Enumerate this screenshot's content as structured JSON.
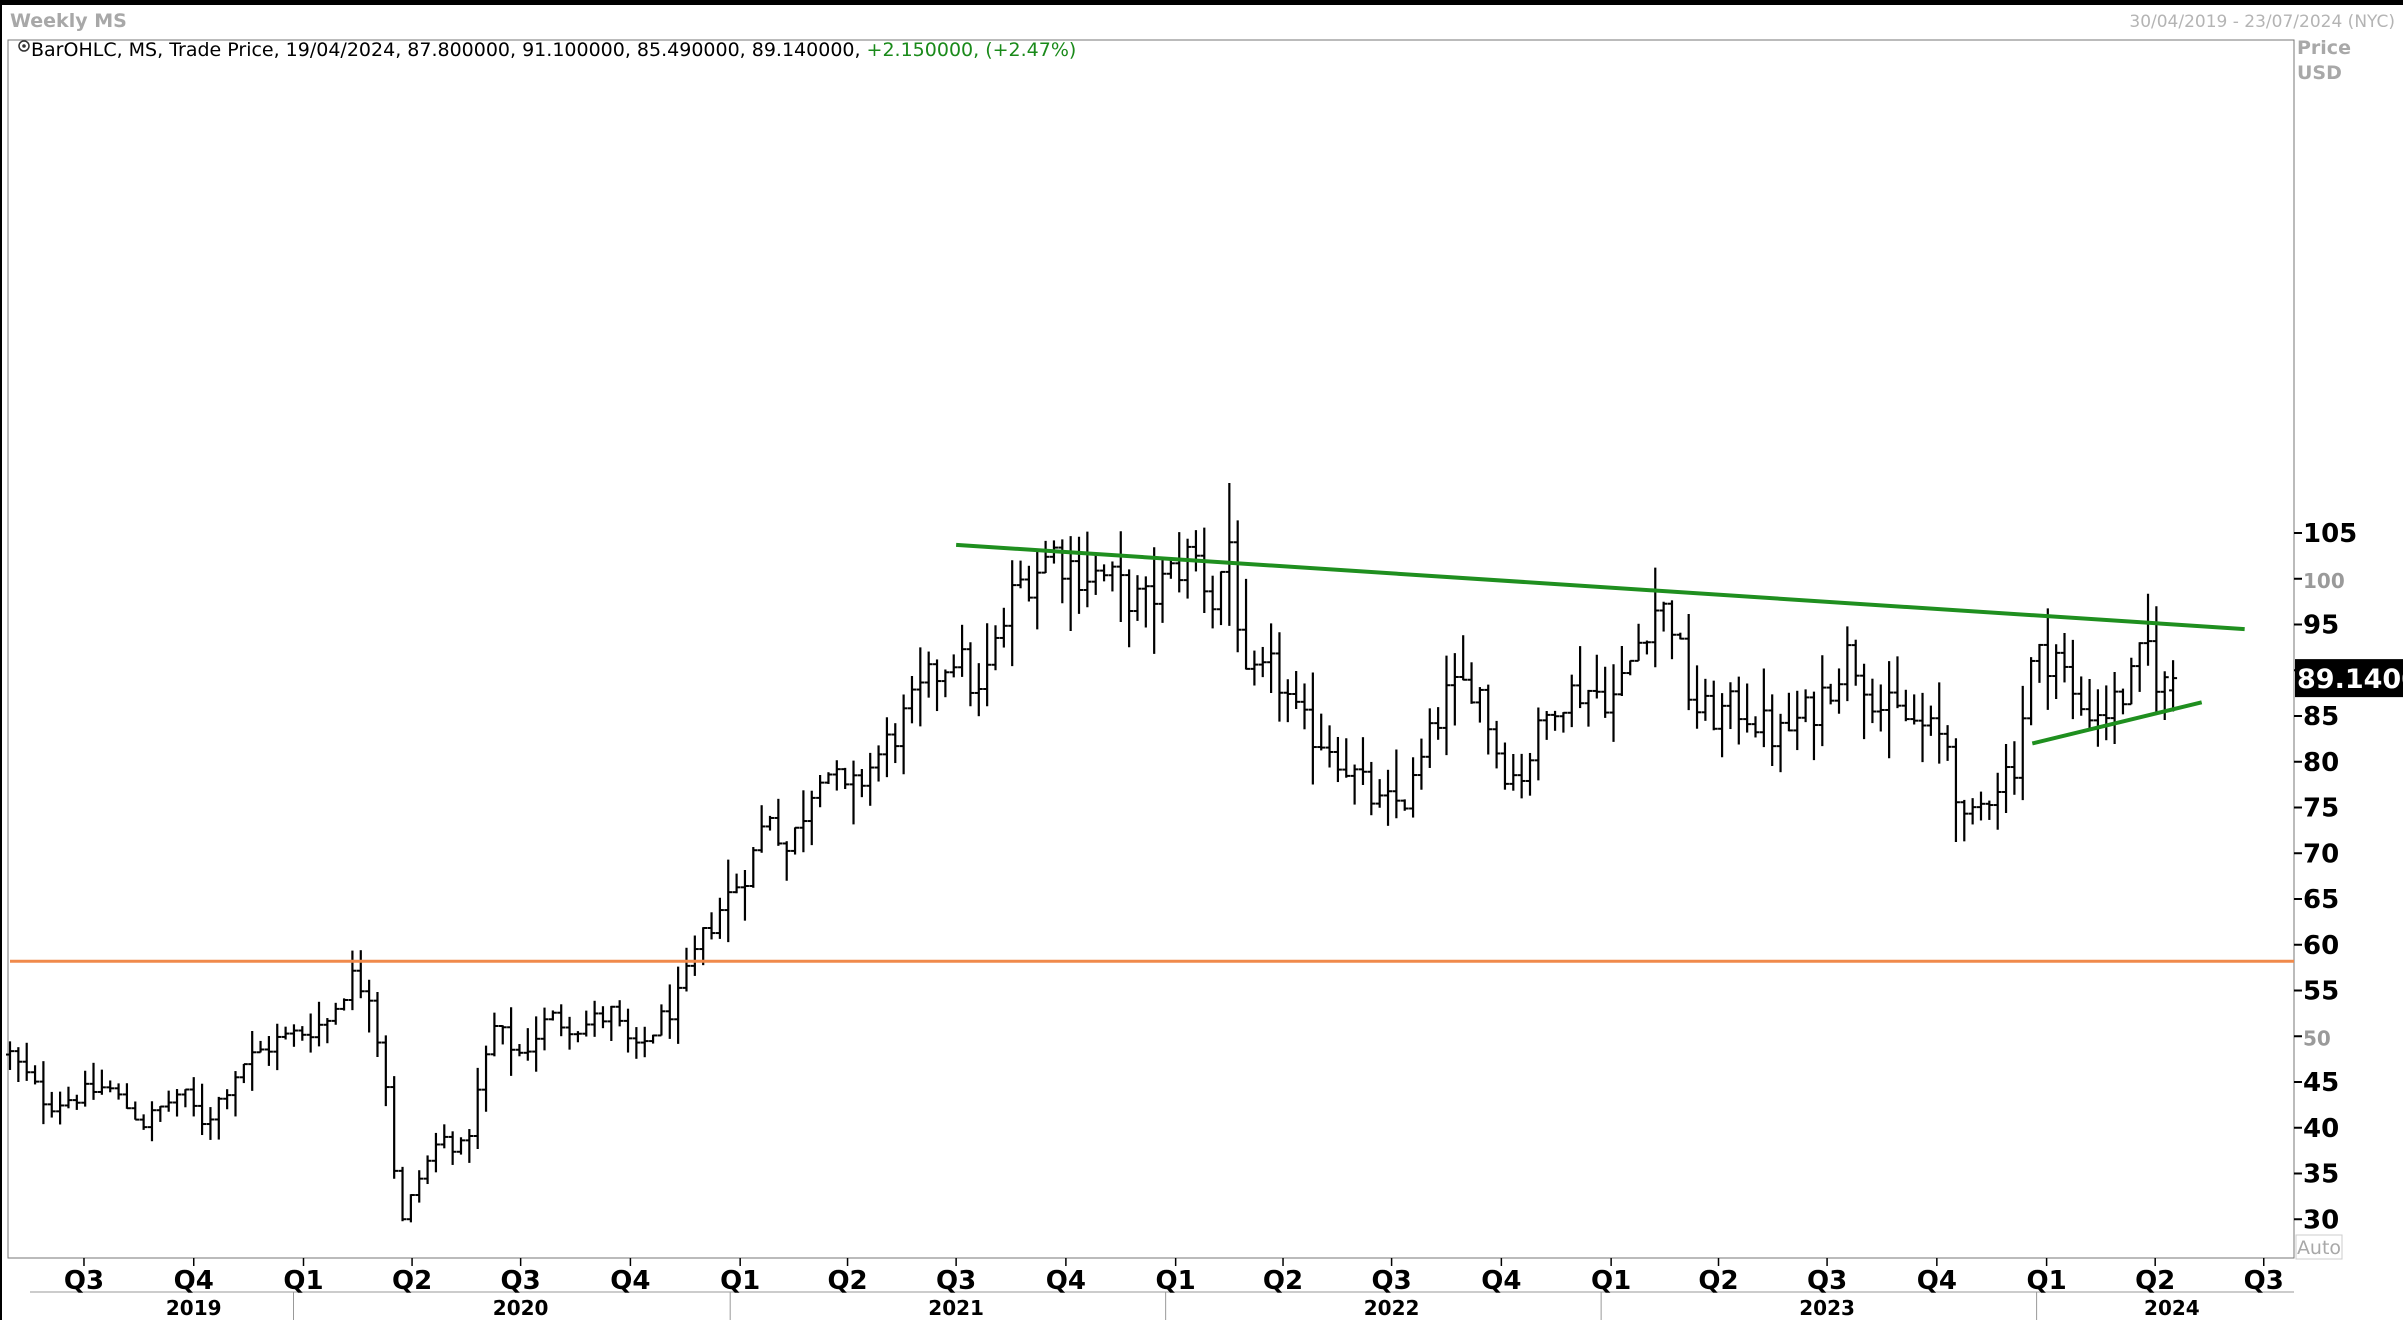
{
  "header": {
    "title": "Weekly MS",
    "date_range": "30/04/2019 - 23/07/2024 (NYC)"
  },
  "info_line": {
    "text": "BarOHLC, MS, Trade Price, 19/04/2024, 87.800000, 91.100000, 85.490000, 89.140000,",
    "change": "+2.150000, (+2.47%)"
  },
  "axis": {
    "unit_label_1": "Price",
    "unit_label_2": "USD",
    "scale_mode": "Auto",
    "last_price_label": "89.1400"
  },
  "colors": {
    "bars": "#000000",
    "trendline": "#1f8f1f",
    "support_line": "#f08a4b",
    "last_price_bg": "#000000",
    "change_text": "#1a8a1a"
  },
  "chart_data": {
    "type": "ohlc",
    "symbol": "MS",
    "interval": "weekly",
    "ylim": [
      26,
      110
    ],
    "y_ticks": [
      {
        "value": 30,
        "label": "30",
        "major": true
      },
      {
        "value": 35,
        "label": "35",
        "major": true
      },
      {
        "value": 40,
        "label": "40",
        "major": true
      },
      {
        "value": 45,
        "label": "45",
        "major": true
      },
      {
        "value": 50,
        "label": "50",
        "major": false
      },
      {
        "value": 55,
        "label": "55",
        "major": true
      },
      {
        "value": 60,
        "label": "60",
        "major": true
      },
      {
        "value": 65,
        "label": "65",
        "major": true
      },
      {
        "value": 70,
        "label": "70",
        "major": true
      },
      {
        "value": 75,
        "label": "75",
        "major": true
      },
      {
        "value": 80,
        "label": "80",
        "major": true
      },
      {
        "value": 85,
        "label": "85",
        "major": true
      },
      {
        "value": 90,
        "label": "",
        "major": true
      },
      {
        "value": 95,
        "label": "95",
        "major": true
      },
      {
        "value": 100,
        "label": "100",
        "major": false
      },
      {
        "value": 105,
        "label": "105",
        "major": true
      }
    ],
    "x_range": [
      "2019-04-30",
      "2024-07-23"
    ],
    "quarter_ticks": [
      {
        "date": "2019-07-01",
        "label": "Q3"
      },
      {
        "date": "2019-10-01",
        "label": "Q4"
      },
      {
        "date": "2020-01-01",
        "label": "Q1"
      },
      {
        "date": "2020-04-01",
        "label": "Q2"
      },
      {
        "date": "2020-07-01",
        "label": "Q3"
      },
      {
        "date": "2020-10-01",
        "label": "Q4"
      },
      {
        "date": "2021-01-01",
        "label": "Q1"
      },
      {
        "date": "2021-04-01",
        "label": "Q2"
      },
      {
        "date": "2021-07-01",
        "label": "Q3"
      },
      {
        "date": "2021-10-01",
        "label": "Q4"
      },
      {
        "date": "2022-01-01",
        "label": "Q1"
      },
      {
        "date": "2022-04-01",
        "label": "Q2"
      },
      {
        "date": "2022-07-01",
        "label": "Q3"
      },
      {
        "date": "2022-10-01",
        "label": "Q4"
      },
      {
        "date": "2023-01-01",
        "label": "Q1"
      },
      {
        "date": "2023-04-01",
        "label": "Q2"
      },
      {
        "date": "2023-07-01",
        "label": "Q3"
      },
      {
        "date": "2023-10-01",
        "label": "Q4"
      },
      {
        "date": "2024-01-01",
        "label": "Q1"
      },
      {
        "date": "2024-04-01",
        "label": "Q2"
      },
      {
        "date": "2024-07-01",
        "label": "Q3"
      }
    ],
    "year_labels": [
      {
        "date": "2019-10-01",
        "label": "2019"
      },
      {
        "date": "2020-07-01",
        "label": "2020"
      },
      {
        "date": "2021-07-01",
        "label": "2021"
      },
      {
        "date": "2022-07-01",
        "label": "2022"
      },
      {
        "date": "2023-07-01",
        "label": "2023"
      },
      {
        "date": "2024-04-15",
        "label": "2024"
      }
    ],
    "year_separators": [
      "2020-01-01",
      "2021-01-01",
      "2022-01-01",
      "2023-01-01",
      "2024-01-01"
    ],
    "anchors": [
      [
        "2019-04-30",
        48.0
      ],
      [
        "2019-06-01",
        42.5
      ],
      [
        "2019-07-20",
        44.5
      ],
      [
        "2019-08-20",
        40.5
      ],
      [
        "2019-09-20",
        44.0
      ],
      [
        "2019-10-10",
        40.5
      ],
      [
        "2019-11-10",
        47.0
      ],
      [
        "2019-12-10",
        49.5
      ],
      [
        "2020-01-20",
        51.5
      ],
      [
        "2020-02-10",
        56.5
      ],
      [
        "2020-02-25",
        55.0
      ],
      [
        "2020-03-10",
        45.0
      ],
      [
        "2020-03-22",
        29.0
      ],
      [
        "2020-04-05",
        34.0
      ],
      [
        "2020-04-25",
        39.0
      ],
      [
        "2020-05-15",
        37.5
      ],
      [
        "2020-06-08",
        51.0
      ],
      [
        "2020-07-01",
        48.0
      ],
      [
        "2020-07-25",
        52.0
      ],
      [
        "2020-08-20",
        51.0
      ],
      [
        "2020-09-15",
        52.5
      ],
      [
        "2020-10-05",
        48.0
      ],
      [
        "2020-10-25",
        51.5
      ],
      [
        "2020-11-10",
        54.0
      ],
      [
        "2020-11-25",
        59.0
      ],
      [
        "2020-12-10",
        63.0
      ],
      [
        "2021-01-10",
        69.0
      ],
      [
        "2021-01-25",
        75.0
      ],
      [
        "2021-02-10",
        70.0
      ],
      [
        "2021-03-10",
        80.0
      ],
      [
        "2021-04-01",
        76.0
      ],
      [
        "2021-05-10",
        83.0
      ],
      [
        "2021-06-10",
        89.0
      ],
      [
        "2021-06-30",
        92.0
      ],
      [
        "2021-07-20",
        87.0
      ],
      [
        "2021-08-20",
        99.0
      ],
      [
        "2021-09-20",
        103.0
      ],
      [
        "2021-10-10",
        101.0
      ],
      [
        "2021-11-05",
        100.0
      ],
      [
        "2021-12-05",
        97.0
      ],
      [
        "2022-01-15",
        103.0
      ],
      [
        "2022-02-01",
        97.5
      ],
      [
        "2022-02-15",
        104.0
      ],
      [
        "2022-03-01",
        88.0
      ],
      [
        "2022-03-25",
        90.0
      ],
      [
        "2022-04-15",
        84.0
      ],
      [
        "2022-05-10",
        82.0
      ],
      [
        "2022-06-20",
        75.0
      ],
      [
        "2022-07-15",
        76.0
      ],
      [
        "2022-08-15",
        87.0
      ],
      [
        "2022-09-10",
        89.0
      ],
      [
        "2022-09-30",
        80.0
      ],
      [
        "2022-10-15",
        78.0
      ],
      [
        "2022-11-15",
        87.0
      ],
      [
        "2022-12-10",
        88.0
      ],
      [
        "2023-01-05",
        87.0
      ],
      [
        "2023-02-05",
        97.0
      ],
      [
        "2023-02-20",
        96.0
      ],
      [
        "2023-03-10",
        86.0
      ],
      [
        "2023-03-25",
        85.0
      ],
      [
        "2023-04-20",
        86.0
      ],
      [
        "2023-05-20",
        82.5
      ],
      [
        "2023-06-20",
        86.0
      ],
      [
        "2023-07-20",
        92.0
      ],
      [
        "2023-08-15",
        86.0
      ],
      [
        "2023-09-15",
        84.0
      ],
      [
        "2023-10-10",
        82.0
      ],
      [
        "2023-10-25",
        72.0
      ],
      [
        "2023-11-15",
        77.0
      ],
      [
        "2023-12-05",
        80.0
      ],
      [
        "2023-12-20",
        91.0
      ],
      [
        "2024-01-10",
        92.0
      ],
      [
        "2024-01-25",
        86.0
      ],
      [
        "2024-02-20",
        85.5
      ],
      [
        "2024-03-10",
        88.0
      ],
      [
        "2024-03-25",
        93.0
      ],
      [
        "2024-04-05",
        88.0
      ],
      [
        "2024-04-19",
        89.14
      ]
    ],
    "last_bar": {
      "date": "2024-04-19",
      "open": 87.8,
      "high": 91.1,
      "low": 85.49,
      "close": 89.14
    },
    "lines": [
      {
        "name": "",
        "type": "trendline",
        "color": "#1f8f1f",
        "start": {
          "date": "2021-07-01",
          "value": 103.7
        },
        "end": {
          "date": "2024-06-15",
          "value": 94.5
        }
      },
      {
        "name": "",
        "type": "trendline",
        "color": "#1f8f1f",
        "start": {
          "date": "2023-12-20",
          "value": 82.0
        },
        "end": {
          "date": "2024-05-10",
          "value": 86.5
        }
      },
      {
        "name": "",
        "type": "horizontal",
        "color": "#f08a4b",
        "value": 58.2
      }
    ]
  }
}
